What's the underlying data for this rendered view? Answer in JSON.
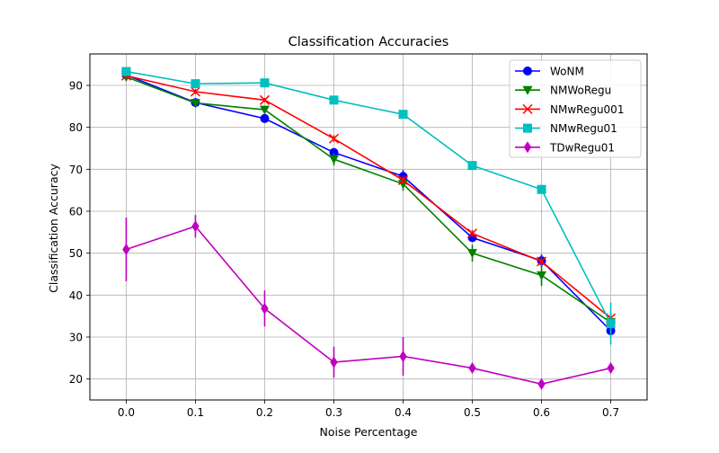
{
  "chart_data": {
    "type": "line",
    "title": "Classification Accuracies",
    "xlabel": "Noise Percentage",
    "ylabel": "Classification Accuracy",
    "xlim": [
      -0.0525,
      0.7525
    ],
    "ylim": [
      15.0,
      97.5
    ],
    "xticks": [
      0.0,
      0.1,
      0.2,
      0.3,
      0.4,
      0.5,
      0.6,
      0.7
    ],
    "xtick_labels": [
      "0.0",
      "0.1",
      "0.2",
      "0.3",
      "0.4",
      "0.5",
      "0.6",
      "0.7"
    ],
    "yticks": [
      20,
      30,
      40,
      50,
      60,
      70,
      80,
      90
    ],
    "ytick_labels": [
      "20",
      "30",
      "40",
      "50",
      "60",
      "70",
      "80",
      "90"
    ],
    "grid": true,
    "legend_position": "top-right",
    "x": [
      0.0,
      0.1,
      0.2,
      0.3,
      0.4,
      0.5,
      0.6,
      0.7
    ],
    "series": [
      {
        "name": "WoNM",
        "color": "#0000ff",
        "marker": "circle",
        "values": [
          92.5,
          85.9,
          82.1,
          74.0,
          68.3,
          53.7,
          48.2,
          31.5
        ],
        "errors": [
          0.5,
          0.5,
          0.6,
          1.0,
          1.5,
          1.0,
          1.5,
          1.2
        ]
      },
      {
        "name": "NMWoRegu",
        "color": "#008000",
        "marker": "triangle-down",
        "values": [
          92.0,
          85.8,
          84.2,
          72.4,
          66.5,
          50.0,
          44.7,
          33.5
        ],
        "errors": [
          0.5,
          0.6,
          0.7,
          1.5,
          1.6,
          2.0,
          2.5,
          1.8
        ]
      },
      {
        "name": "NMwRegu001",
        "color": "#ff0000",
        "marker": "x",
        "values": [
          92.3,
          88.5,
          86.5,
          77.3,
          67.4,
          54.7,
          48.0,
          34.5
        ],
        "errors": [
          0.5,
          0.6,
          0.5,
          0.8,
          1.0,
          0.8,
          1.0,
          1.2
        ]
      },
      {
        "name": "NMwRegu01",
        "color": "#00bfbf",
        "marker": "square",
        "values": [
          93.3,
          90.4,
          90.6,
          86.5,
          83.1,
          70.9,
          65.2,
          33.2
        ],
        "errors": [
          0.5,
          0.6,
          0.5,
          0.7,
          0.6,
          0.5,
          1.0,
          5.0
        ]
      },
      {
        "name": "TDwRegu01",
        "color": "#bf00bf",
        "marker": "diamond",
        "values": [
          50.9,
          56.4,
          36.8,
          24.0,
          25.4,
          22.6,
          18.8,
          22.6
        ],
        "errors": [
          7.6,
          2.7,
          4.3,
          3.7,
          4.6,
          1.0,
          1.0,
          1.2
        ]
      }
    ]
  }
}
